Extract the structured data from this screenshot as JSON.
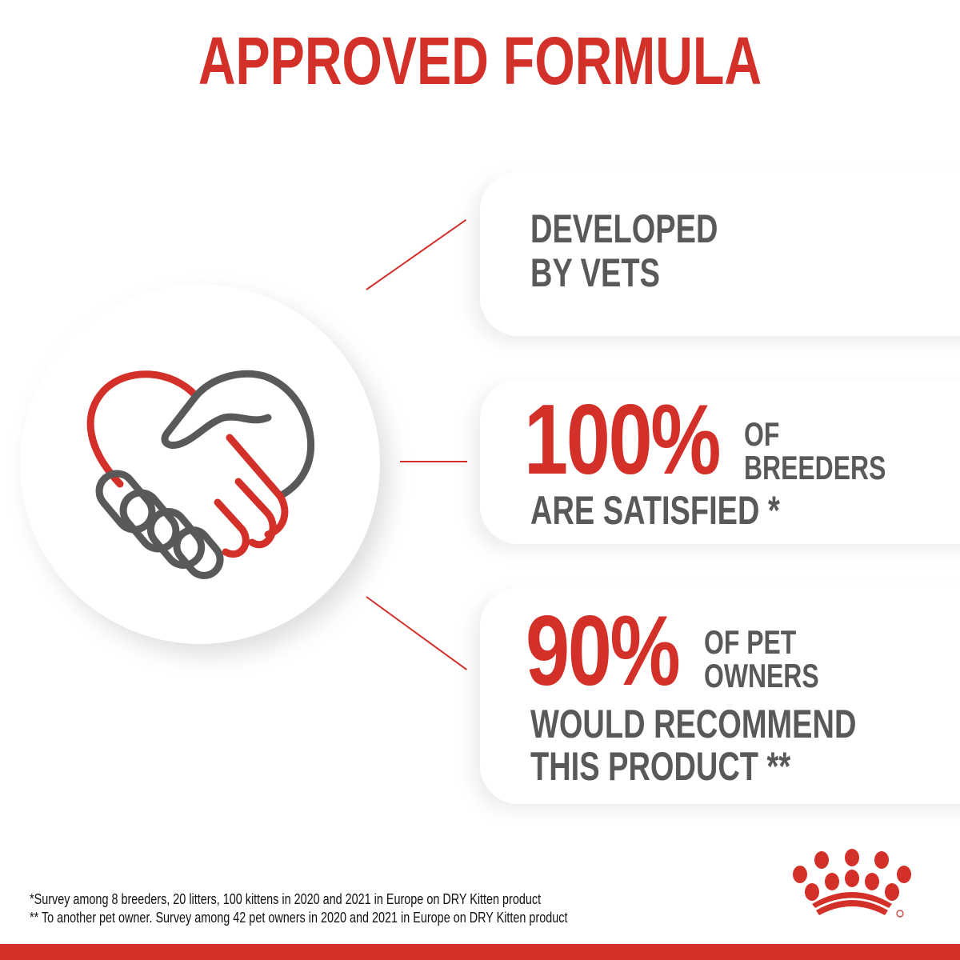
{
  "title": "APPROVED FORMULA",
  "colors": {
    "brand_red": "#d3302a",
    "text_gray": "#595959"
  },
  "icon": "handshake-heart-icon",
  "cards": [
    {
      "line1": "DEVELOPED",
      "line2": "BY VETS"
    },
    {
      "stat": "100%",
      "stat_label1": "OF",
      "stat_label2": "BREEDERS",
      "line1": "ARE SATISFIED *"
    },
    {
      "stat": "90%",
      "stat_label1": "OF PET",
      "stat_label2": "OWNERS",
      "line1": "WOULD RECOMMEND",
      "line2": "THIS PRODUCT **"
    }
  ],
  "footnotes": [
    "*Survey among 8 breeders, 20 litters, 100 kittens in 2020 and 2021 in Europe on DRY Kitten product",
    "** To another pet owner. Survey among 42 pet owners in 2020 and 2021 in Europe on DRY Kitten product"
  ],
  "logo": "royal-canin-crown-logo"
}
